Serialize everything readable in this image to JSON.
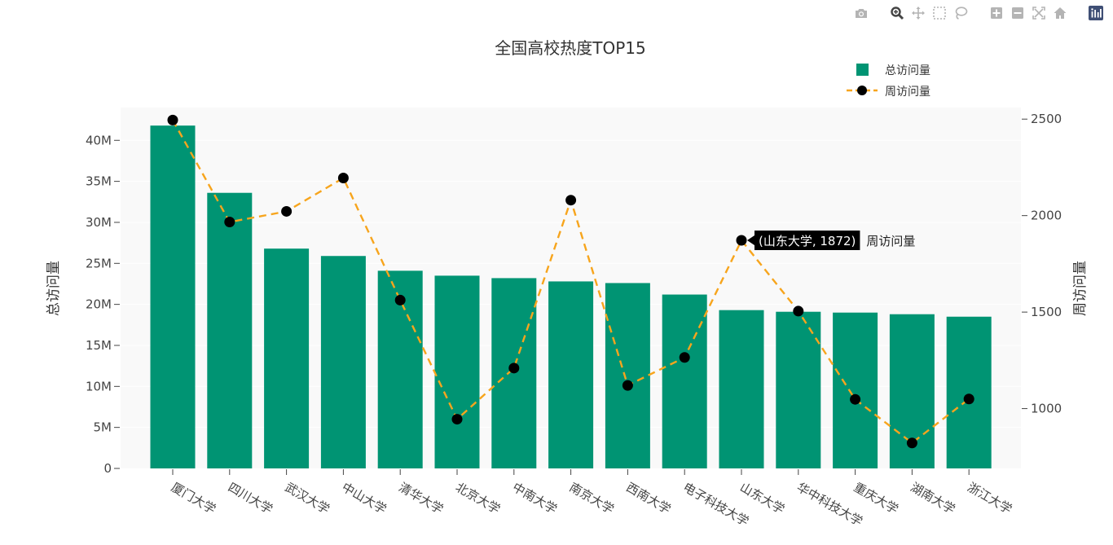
{
  "chart_data": {
    "type": "bar",
    "title": "全国高校热度TOP15",
    "categories": [
      "厦门大学",
      "四川大学",
      "武汉大学",
      "中山大学",
      "清华大学",
      "北京大学",
      "中南大学",
      "南京大学",
      "西南大学",
      "电子科技大学",
      "山东大学",
      "华中科技大学",
      "重庆大学",
      "湖南大学",
      "浙江大学"
    ],
    "series": [
      {
        "name": "总访问量",
        "type": "bar",
        "axis": "left",
        "color": "#009473",
        "values": [
          41800000,
          33600000,
          26800000,
          25900000,
          24100000,
          23500000,
          23200000,
          22800000,
          22600000,
          21200000,
          19300000,
          19100000,
          19000000,
          18800000,
          18500000
        ]
      },
      {
        "name": "周访问量",
        "type": "line",
        "axis": "right",
        "color": "#f7a51d",
        "marker_color": "#000000",
        "dash": "dashed",
        "values": [
          2495,
          1967,
          2022,
          2195,
          1562,
          945,
          1210,
          2080,
          1120,
          1265,
          1872,
          1505,
          1048,
          822,
          1050
        ]
      }
    ],
    "ylabel": "总访问量",
    "y2label": "周访问量",
    "ylim": [
      0,
      44000000
    ],
    "y2lim": [
      690,
      2560
    ],
    "yticks": [
      {
        "v": 0,
        "label": "0"
      },
      {
        "v": 5000000,
        "label": "5M"
      },
      {
        "v": 10000000,
        "label": "10M"
      },
      {
        "v": 15000000,
        "label": "15M"
      },
      {
        "v": 20000000,
        "label": "20M"
      },
      {
        "v": 25000000,
        "label": "25M"
      },
      {
        "v": 30000000,
        "label": "30M"
      },
      {
        "v": 35000000,
        "label": "35M"
      },
      {
        "v": 40000000,
        "label": "40M"
      }
    ],
    "y2ticks": [
      {
        "v": 1000,
        "label": "1000"
      },
      {
        "v": 1500,
        "label": "1500"
      },
      {
        "v": 2000,
        "label": "2000"
      },
      {
        "v": 2500,
        "label": "2500"
      }
    ],
    "legend": {
      "placement": "top-right"
    },
    "grid": true,
    "hover": {
      "index": 10,
      "text": "(山东大学, 1872)",
      "series_name": "周访问量"
    }
  },
  "modebar": {
    "icons": [
      "camera-icon",
      "zoom-icon",
      "pan-icon",
      "box-select-icon",
      "lasso-icon",
      "zoom-in-icon",
      "zoom-out-icon",
      "autoscale-icon",
      "reset-axes-icon",
      "plotly-logo-icon"
    ]
  }
}
